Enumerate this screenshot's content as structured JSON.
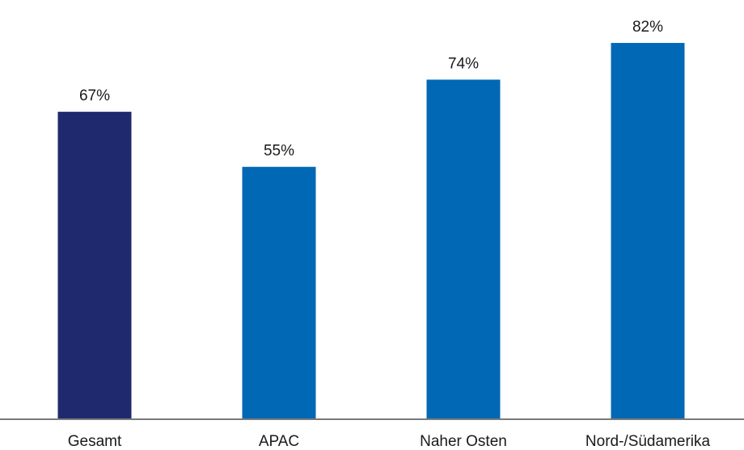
{
  "chart_data": {
    "type": "bar",
    "categories": [
      "Gesamt",
      "APAC",
      "Naher Osten",
      "Nord-/Südamerika"
    ],
    "values": [
      67,
      55,
      74,
      82
    ],
    "value_labels": [
      "67%",
      "55%",
      "74%",
      "82%"
    ],
    "ylim": [
      0,
      100
    ],
    "grid": false,
    "legend": "none",
    "colors": [
      "#1f2a6e",
      "#0068b4",
      "#0068b4",
      "#0068b4"
    ],
    "axis_color": "#7a7a7a"
  }
}
